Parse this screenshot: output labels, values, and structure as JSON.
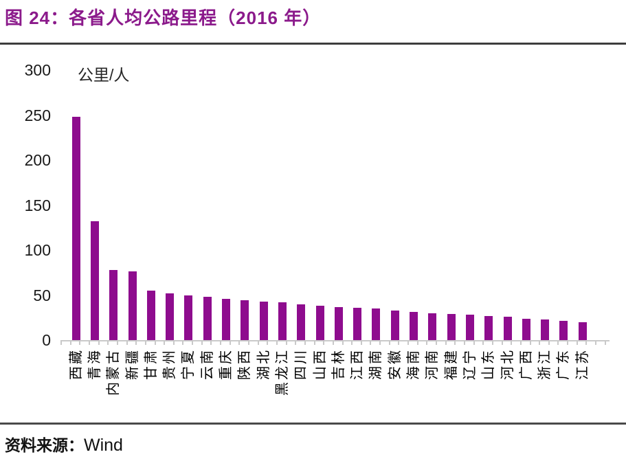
{
  "header": {
    "title": "图 24：各省人均公路里程（2016 年）"
  },
  "footer": {
    "source_label": "资料来源：",
    "source_value": "Wind"
  },
  "chart_data": {
    "type": "bar",
    "title": "各省人均公路里程（2016 年）",
    "unit_label": "公里/人",
    "xlabel": "",
    "ylabel": "公里/人",
    "categories": [
      "西藏",
      "青海",
      "内蒙古",
      "新疆",
      "甘肃",
      "贵州",
      "宁夏",
      "云南",
      "重庆",
      "陕西",
      "湖北",
      "黑龙江",
      "四川",
      "山西",
      "吉林",
      "江西",
      "湖南",
      "安徽",
      "海南",
      "河南",
      "福建",
      "辽宁",
      "山东",
      "河北",
      "广西",
      "浙江",
      "广东",
      "江苏"
    ],
    "values": [
      248,
      132,
      78,
      76,
      55,
      52,
      50,
      48,
      46,
      44,
      43,
      42,
      40,
      38,
      37,
      36,
      35,
      33,
      31,
      30,
      29,
      28,
      27,
      26,
      24,
      23,
      21,
      20
    ],
    "ylim": [
      0,
      300
    ],
    "yticks": [
      0,
      50,
      100,
      150,
      200,
      250,
      300
    ],
    "grid": false,
    "legend": "none",
    "bar_color": "#8E0C8E",
    "axis_color": "#C9C9C9",
    "title_color": "#8B1A8B"
  }
}
